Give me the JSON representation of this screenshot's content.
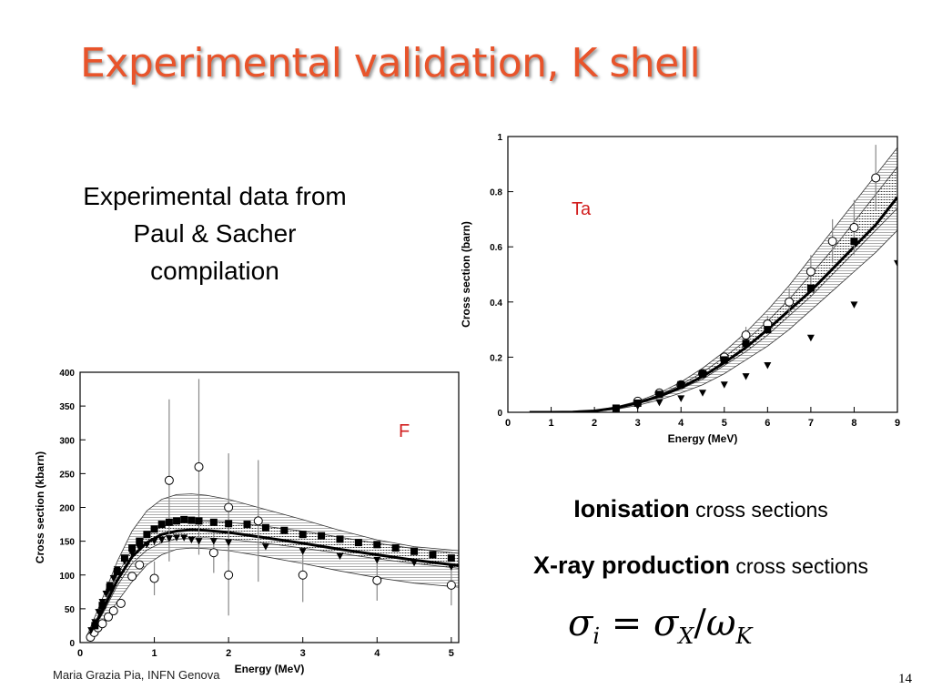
{
  "slide": {
    "title": "Experimental validation, K shell",
    "intro_lines": [
      "Experimental data from",
      "Paul & Sacher",
      "compilation"
    ],
    "ionisation_bold": "Ionisation",
    "ionisation_rest": " cross sections",
    "xray_bold": "X-ray production",
    "xray_rest": " cross sections",
    "formula": {
      "lhs": "σ",
      "lhs_sub": "i",
      "eq": " = ",
      "num": "σ",
      "num_sub": "X",
      "slash": "/",
      "den": "ω",
      "den_sub": "K"
    },
    "footer": "Maria Grazia Pia, INFN Genova",
    "page_number": "14",
    "title_color": "#e8542b",
    "label_color": "#d21f1f"
  },
  "chart_data": [
    {
      "type": "scatter",
      "element_label": "F",
      "xlabel": "Energy (MeV)",
      "ylabel": "Cross section (kbarn)",
      "xlim": [
        0,
        5.1
      ],
      "ylim": [
        0,
        400
      ],
      "xticks": [
        0,
        1,
        2,
        3,
        4,
        5
      ],
      "yticks": [
        0,
        50,
        100,
        150,
        200,
        250,
        300,
        350,
        400
      ],
      "bands": [
        {
          "name": "outer",
          "x": [
            0.1,
            0.3,
            0.5,
            0.7,
            0.9,
            1.1,
            1.3,
            1.5,
            1.7,
            2,
            2.5,
            3,
            3.5,
            4,
            4.5,
            5.1
          ],
          "upper": [
            12,
            65,
            120,
            165,
            195,
            212,
            219,
            220,
            218,
            212,
            197,
            182,
            166,
            152,
            142,
            136
          ],
          "lower": [
            3,
            30,
            60,
            90,
            115,
            130,
            138,
            140,
            139,
            136,
            127,
            117,
            106,
            96,
            88,
            82
          ]
        },
        {
          "name": "inner",
          "x": [
            0.1,
            0.3,
            0.5,
            0.7,
            0.9,
            1.1,
            1.3,
            1.5,
            1.7,
            2,
            2.5,
            3,
            3.5,
            4,
            4.5,
            5.1
          ],
          "upper": [
            8,
            52,
            100,
            138,
            160,
            172,
            178,
            180,
            180,
            178,
            172,
            165,
            156,
            147,
            139,
            132
          ],
          "lower": [
            6,
            42,
            84,
            117,
            137,
            148,
            153,
            155,
            155,
            153,
            147,
            140,
            132,
            124,
            117,
            110
          ]
        }
      ],
      "curves": [
        {
          "name": "thick",
          "x": [
            0.1,
            0.3,
            0.5,
            0.7,
            0.9,
            1.1,
            1.3,
            1.5,
            1.7,
            2,
            2.5,
            3,
            3.5,
            4,
            4.5,
            5.1
          ],
          "y": [
            6,
            47,
            92,
            127,
            148,
            160,
            165,
            167,
            166,
            163,
            155,
            147,
            138,
            130,
            122,
            114
          ]
        }
      ],
      "series": [
        {
          "marker": "open-circle",
          "x": [
            0.14,
            0.19,
            0.24,
            0.3,
            0.38,
            0.45,
            0.55,
            0.7,
            0.8,
            1.0,
            1.2,
            1.6,
            1.8,
            2.0,
            2.0,
            2.4,
            3.0,
            4.0,
            5.0
          ],
          "y": [
            8,
            15,
            22,
            28,
            38,
            47,
            58,
            98,
            115,
            95,
            240,
            260,
            133,
            200,
            100,
            180,
            100,
            92,
            85
          ],
          "err": [
            0,
            0,
            0,
            0,
            0,
            0,
            0,
            0,
            0,
            25,
            120,
            130,
            30,
            80,
            60,
            90,
            40,
            30,
            30
          ]
        },
        {
          "marker": "filled-square",
          "x": [
            0.2,
            0.3,
            0.4,
            0.5,
            0.6,
            0.7,
            0.8,
            0.9,
            1.0,
            1.1,
            1.2,
            1.3,
            1.4,
            1.5,
            1.6,
            1.8,
            2.0,
            2.25,
            2.5,
            2.75,
            3.0,
            3.25,
            3.5,
            3.75,
            4.0,
            4.25,
            4.5,
            4.75,
            5.0
          ],
          "y": [
            25,
            55,
            82,
            105,
            125,
            140,
            150,
            160,
            168,
            175,
            178,
            180,
            182,
            181,
            180,
            178,
            176,
            175,
            170,
            166,
            160,
            158,
            153,
            148,
            145,
            140,
            135,
            130,
            125
          ]
        },
        {
          "marker": "filled-triangle-down",
          "x": [
            0.15,
            0.2,
            0.25,
            0.3,
            0.35,
            0.4,
            0.45,
            0.5,
            0.6,
            0.7,
            0.8,
            0.9,
            1.0,
            1.1,
            1.2,
            1.3,
            1.4,
            1.5,
            1.6,
            1.8,
            2.0,
            2.5,
            3.0,
            3.5,
            4.0,
            4.5,
            5.0
          ],
          "y": [
            18,
            30,
            45,
            60,
            72,
            85,
            95,
            108,
            120,
            132,
            140,
            145,
            150,
            152,
            154,
            155,
            155,
            152,
            150,
            150,
            148,
            142,
            135,
            128,
            122,
            118,
            112
          ]
        }
      ]
    },
    {
      "type": "scatter",
      "element_label": "Ta",
      "xlabel": "Energy (MeV)",
      "ylabel": "Cross section (barn)",
      "xlim": [
        0,
        9
      ],
      "ylim": [
        0,
        1.0
      ],
      "xticks": [
        0,
        1,
        2,
        3,
        4,
        5,
        6,
        7,
        8,
        9
      ],
      "yticks": [
        0,
        0.2,
        0.4,
        0.6,
        0.8,
        1
      ],
      "bands": [
        {
          "name": "outer",
          "x": [
            0.5,
            1,
            1.5,
            2,
            2.5,
            3,
            3.5,
            4,
            4.5,
            5,
            5.5,
            6,
            6.5,
            7,
            7.5,
            8,
            8.5,
            9
          ],
          "upper": [
            0,
            0,
            0.001,
            0.006,
            0.02,
            0.04,
            0.07,
            0.11,
            0.16,
            0.22,
            0.29,
            0.37,
            0.46,
            0.56,
            0.66,
            0.76,
            0.86,
            0.96
          ],
          "lower": [
            0,
            0,
            0,
            0.003,
            0.011,
            0.025,
            0.045,
            0.07,
            0.1,
            0.14,
            0.19,
            0.24,
            0.3,
            0.37,
            0.44,
            0.51,
            0.58,
            0.66
          ]
        },
        {
          "name": "inner",
          "x": [
            0.5,
            1,
            1.5,
            2,
            2.5,
            3,
            3.5,
            4,
            4.5,
            5,
            5.5,
            6,
            6.5,
            7,
            7.5,
            8,
            8.5,
            9
          ],
          "upper": [
            0,
            0,
            0.001,
            0.005,
            0.018,
            0.037,
            0.063,
            0.1,
            0.145,
            0.2,
            0.26,
            0.33,
            0.41,
            0.5,
            0.59,
            0.69,
            0.79,
            0.89
          ],
          "lower": [
            0,
            0,
            0,
            0.004,
            0.014,
            0.031,
            0.054,
            0.085,
            0.12,
            0.17,
            0.22,
            0.28,
            0.35,
            0.42,
            0.5,
            0.58,
            0.66,
            0.74
          ]
        }
      ],
      "curves": [
        {
          "name": "thick",
          "x": [
            0.5,
            1,
            1.5,
            2,
            2.5,
            3,
            3.5,
            4,
            4.5,
            5,
            5.5,
            6,
            6.5,
            7,
            7.5,
            8,
            8.5,
            9
          ],
          "y": [
            0,
            0,
            0.001,
            0.005,
            0.016,
            0.034,
            0.058,
            0.09,
            0.13,
            0.18,
            0.235,
            0.3,
            0.37,
            0.44,
            0.52,
            0.6,
            0.68,
            0.78
          ]
        }
      ],
      "series": [
        {
          "marker": "open-circle",
          "x": [
            3,
            3.5,
            4,
            4.5,
            5,
            5.5,
            6,
            6.5,
            7,
            7.5,
            8,
            8.5
          ],
          "y": [
            0.04,
            0.07,
            0.1,
            0.14,
            0.2,
            0.28,
            0.32,
            0.4,
            0.51,
            0.62,
            0.67,
            0.85
          ],
          "err": [
            0,
            0,
            0,
            0,
            0,
            0.03,
            0.03,
            0.05,
            0.06,
            0.08,
            0.1,
            0.12
          ]
        },
        {
          "marker": "filled-square",
          "x": [
            2.5,
            3,
            3.5,
            4,
            4.5,
            5,
            5.5,
            6,
            7,
            8
          ],
          "y": [
            0.015,
            0.033,
            0.065,
            0.1,
            0.14,
            0.19,
            0.25,
            0.3,
            0.45,
            0.62
          ]
        },
        {
          "marker": "filled-triangle-down",
          "x": [
            2.5,
            3,
            3.5,
            4,
            4.5,
            5,
            5.5,
            6,
            7,
            8,
            9
          ],
          "y": [
            0.01,
            0.022,
            0.035,
            0.05,
            0.07,
            0.1,
            0.13,
            0.17,
            0.27,
            0.39,
            0.54
          ]
        }
      ]
    }
  ]
}
